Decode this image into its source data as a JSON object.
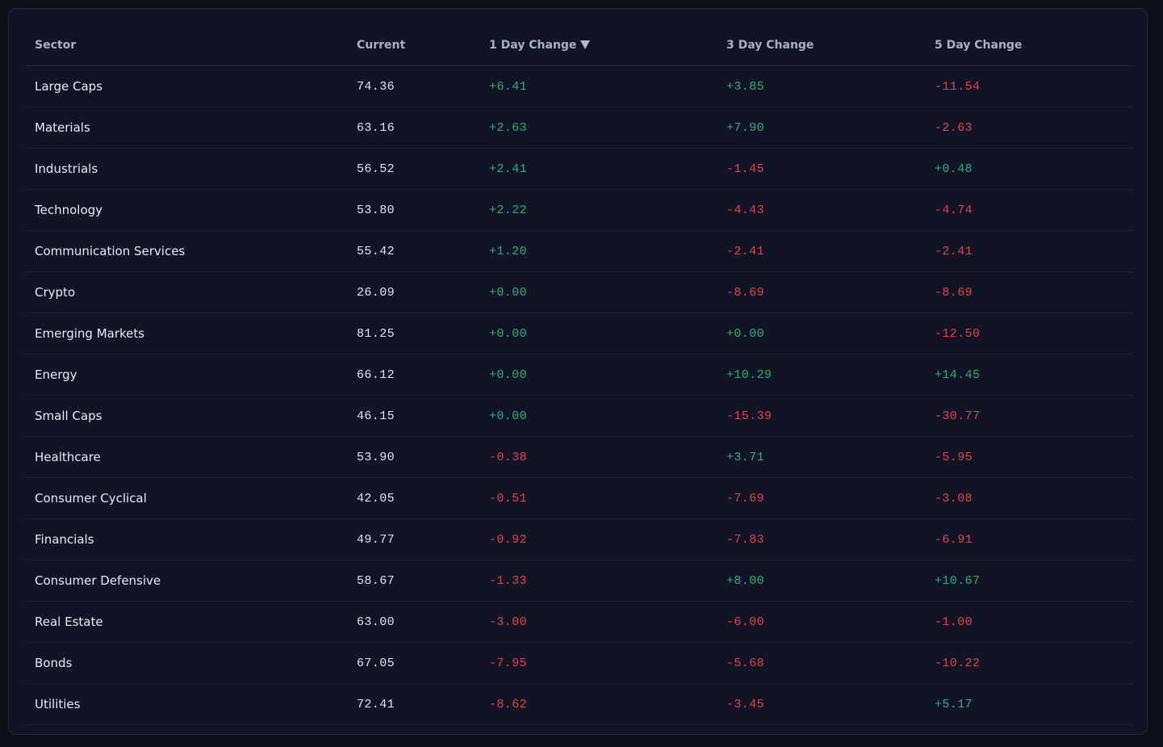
{
  "table": {
    "columns": [
      "Sector",
      "Current",
      "1 Day Change",
      "3 Day Change",
      "5 Day Change"
    ],
    "sorted_column": "1 Day Change",
    "sort_direction": "descending",
    "sort_icon": "triangle-down-icon",
    "colors": {
      "positive": "#22b07e",
      "negative": "#e2414d"
    },
    "rows": [
      {
        "sector": "Large Caps",
        "current": "74.36",
        "day1": "+6.41",
        "day3": "+3.85",
        "day5": "-11.54"
      },
      {
        "sector": "Materials",
        "current": "63.16",
        "day1": "+2.63",
        "day3": "+7.90",
        "day5": "-2.63"
      },
      {
        "sector": "Industrials",
        "current": "56.52",
        "day1": "+2.41",
        "day3": "-1.45",
        "day5": "+0.48"
      },
      {
        "sector": "Technology",
        "current": "53.80",
        "day1": "+2.22",
        "day3": "-4.43",
        "day5": "-4.74"
      },
      {
        "sector": "Communication Services",
        "current": "55.42",
        "day1": "+1.20",
        "day3": "-2.41",
        "day5": "-2.41"
      },
      {
        "sector": "Crypto",
        "current": "26.09",
        "day1": "+0.00",
        "day3": "-8.69",
        "day5": "-8.69"
      },
      {
        "sector": "Emerging Markets",
        "current": "81.25",
        "day1": "+0.00",
        "day3": "+0.00",
        "day5": "-12.50"
      },
      {
        "sector": "Energy",
        "current": "66.12",
        "day1": "+0.00",
        "day3": "+10.29",
        "day5": "+14.45"
      },
      {
        "sector": "Small Caps",
        "current": "46.15",
        "day1": "+0.00",
        "day3": "-15.39",
        "day5": "-30.77"
      },
      {
        "sector": "Healthcare",
        "current": "53.90",
        "day1": "-0.38",
        "day3": "+3.71",
        "day5": "-5.95"
      },
      {
        "sector": "Consumer Cyclical",
        "current": "42.05",
        "day1": "-0.51",
        "day3": "-7.69",
        "day5": "-3.08"
      },
      {
        "sector": "Financials",
        "current": "49.77",
        "day1": "-0.92",
        "day3": "-7.83",
        "day5": "-6.91"
      },
      {
        "sector": "Consumer Defensive",
        "current": "58.67",
        "day1": "-1.33",
        "day3": "+8.00",
        "day5": "+10.67"
      },
      {
        "sector": "Real Estate",
        "current": "63.00",
        "day1": "-3.00",
        "day3": "-6.00",
        "day5": "-1.00"
      },
      {
        "sector": "Bonds",
        "current": "67.05",
        "day1": "-7.95",
        "day3": "-5.68",
        "day5": "-10.22"
      },
      {
        "sector": "Utilities",
        "current": "72.41",
        "day1": "-8.62",
        "day3": "-3.45",
        "day5": "+5.17"
      }
    ]
  }
}
